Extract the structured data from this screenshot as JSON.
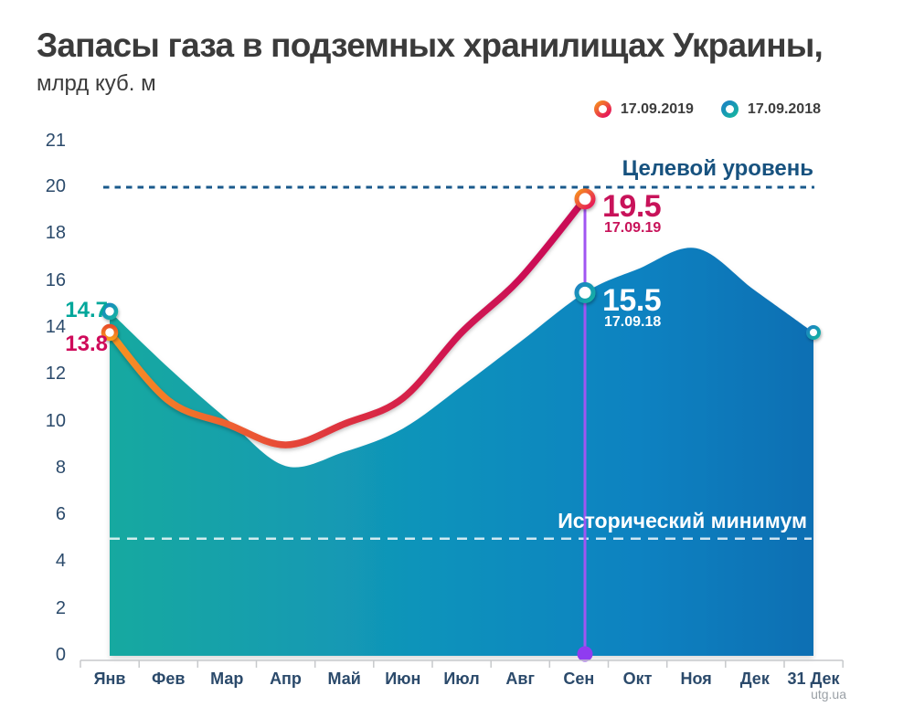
{
  "header": {
    "title": "Запасы газа в подземных хранилищах Украины,",
    "subtitle": "млрд куб. м"
  },
  "legend": {
    "items": [
      {
        "label": "17.09.2019",
        "ring_colors": [
          "#f6911e",
          "#e5125c"
        ]
      },
      {
        "label": "17.09.2018",
        "ring_colors": [
          "#1b82c4",
          "#16b2a2"
        ]
      }
    ]
  },
  "annotations": {
    "target_label": "Целевой уровень",
    "min_label": "Исторический минимум"
  },
  "callouts": {
    "sep_2019": {
      "value": "19.5",
      "date": "17.09.19"
    },
    "sep_2018": {
      "value": "15.5",
      "date": "17.09.18"
    },
    "start_2018": "14.7",
    "start_2019": "13.8"
  },
  "footer": {
    "source": "utg.ua"
  },
  "colors": {
    "area_gradient": [
      "#18a9a0",
      "#1093bb",
      "#0d82c1",
      "#0b6fb3"
    ],
    "line_gradient": [
      "#f79322",
      "#ef6030",
      "#dc3040",
      "#d01551",
      "#c90d56"
    ],
    "target_line": "#1a5a8c",
    "min_line": "rgba(255,255,255,0.8)",
    "vertical_line": "#a055f2",
    "vertical_dot": "#8f3cf0",
    "axis": "#c7c9cc",
    "tick_text": "#2b4a6b",
    "value_2019_text": "#c8135a",
    "value_2018_start_text": "#00a79b"
  },
  "chart_data": {
    "type": "area",
    "title": "Запасы газа в подземных хранилищах Украины,",
    "subtitle": "млрд куб. м",
    "categories": [
      "Янв",
      "Фев",
      "Мар",
      "Апр",
      "Май",
      "Июн",
      "Июл",
      "Авг",
      "Сен",
      "Окт",
      "Ноя",
      "Дек",
      "31 Дек"
    ],
    "series": [
      {
        "name": "17.09.2019",
        "type": "line",
        "values": [
          13.8,
          10.9,
          9.9,
          9.0,
          9.9,
          11.0,
          13.8,
          16.1,
          19.5
        ],
        "note": "line ends 17 Sep 2019 at 19.5"
      },
      {
        "name": "17.09.2018",
        "type": "area",
        "values": [
          14.7,
          12.3,
          10.1,
          8.1,
          8.7,
          9.7,
          11.5,
          13.4,
          15.5,
          16.5,
          17.4,
          15.6,
          13.8
        ],
        "note": "value at 17 Sep 2018 is 15.5; year-end 31 Dec is 13.8"
      }
    ],
    "ylim": [
      0,
      21
    ],
    "yticks": [
      0,
      2,
      4,
      6,
      8,
      10,
      12,
      14,
      16,
      18,
      20,
      21
    ],
    "target_line": {
      "value": 20,
      "label": "Целевой уровень"
    },
    "min_line": {
      "value": 5,
      "label": "Исторический минимум"
    },
    "legend_position": "top-right",
    "grid": false
  }
}
